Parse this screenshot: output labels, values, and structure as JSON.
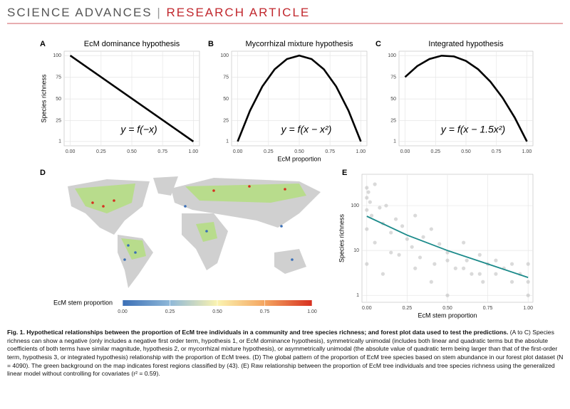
{
  "header": {
    "journal": "SCIENCE ADVANCES",
    "section": "RESEARCH ARTICLE"
  },
  "chart_data": [
    {
      "type": "line",
      "panel": "A",
      "title": "EcM dominance hypothesis",
      "ylabel": "Species richness",
      "annotation": "y = f(−x)",
      "x": [
        0,
        1
      ],
      "values": [
        100,
        1
      ],
      "color": "#000000",
      "xlim": [
        -0.05,
        1.05
      ],
      "ylim": [
        -4,
        105
      ],
      "xticks": [
        {
          "value": 0,
          "label": "0.00"
        },
        0.25,
        {
          "value": 0.5,
          "label": "0.50"
        },
        0.75,
        {
          "value": 1,
          "label": "1.00"
        }
      ],
      "yticks": [
        1,
        25,
        50,
        75,
        100
      ],
      "grid": true
    },
    {
      "type": "line",
      "panel": "B",
      "title": "Mycorrhizal mixture hypothesis",
      "xlabel": "EcM proportion",
      "annotation": "y = f(x − x²)",
      "x": [
        0,
        0.1,
        0.2,
        0.3,
        0.4,
        0.5,
        0.6,
        0.7,
        0.8,
        0.9,
        1
      ],
      "values": [
        1,
        36.6,
        64.4,
        84.2,
        96,
        100,
        96,
        84.2,
        64.4,
        36.6,
        1
      ],
      "color": "#000000",
      "xlim": [
        -0.05,
        1.05
      ],
      "ylim": [
        -4,
        105
      ],
      "xticks": [
        {
          "value": 0,
          "label": "0.00"
        },
        0.25,
        {
          "value": 0.5,
          "label": "0.50"
        },
        0.75,
        {
          "value": 1,
          "label": "1.00"
        }
      ],
      "yticks": [
        1,
        25,
        50,
        75,
        100
      ],
      "grid": true
    },
    {
      "type": "line",
      "panel": "C",
      "title": "Integrated hypothesis",
      "annotation": "y = f(x − 1.5x²)",
      "x": [
        0,
        0.1,
        0.2,
        0.3,
        0.4,
        0.5,
        0.6,
        0.7,
        0.8,
        0.9,
        1
      ],
      "values": [
        75.25,
        87.9,
        96,
        99.8,
        99,
        93.8,
        84.2,
        70,
        51.5,
        28.5,
        1
      ],
      "color": "#000000",
      "xlim": [
        -0.05,
        1.05
      ],
      "ylim": [
        -4,
        105
      ],
      "xticks": [
        {
          "value": 0,
          "label": "0.00"
        },
        0.25,
        {
          "value": 0.5,
          "label": "0.50"
        },
        0.75,
        {
          "value": 1,
          "label": "1.00"
        }
      ],
      "yticks": [
        1,
        25,
        50,
        75,
        100
      ],
      "grid": true
    },
    {
      "type": "colorbar",
      "panel": "D",
      "label": "EcM stem proportion",
      "colors": [
        "#3b6fb6",
        "#8fb8d8",
        "#fbf3b0",
        "#f4a560",
        "#d7301f"
      ],
      "xlim": [
        0,
        1
      ],
      "xticks": [
        {
          "value": 0,
          "label": "0.00"
        },
        0.25,
        {
          "value": 0.5,
          "label": "0.50"
        },
        0.75,
        {
          "value": 1,
          "label": "1.00"
        }
      ]
    },
    {
      "type": "scatter",
      "panel": "E",
      "xlabel": "EcM stem proportion",
      "ylabel": "Species richness",
      "x": [
        0,
        0,
        0,
        0,
        0,
        0.01,
        0.02,
        0.03,
        0.05,
        0.05,
        0.08,
        0.1,
        0.12,
        0.15,
        0.18,
        0.2,
        0.22,
        0.25,
        0.28,
        0.3,
        0.33,
        0.35,
        0.4,
        0.42,
        0.45,
        0.5,
        0.5,
        0.55,
        0.6,
        0.62,
        0.65,
        0.7,
        0.72,
        0.75,
        0.8,
        0.85,
        0.9,
        0.95,
        1,
        1,
        1,
        0.3,
        0.5,
        0.7,
        0.9,
        0.1,
        0.6,
        0.15,
        0.4,
        0.8
      ],
      "values": [
        250,
        150,
        80,
        30,
        5,
        200,
        120,
        60,
        300,
        15,
        90,
        40,
        100,
        25,
        50,
        8,
        35,
        18,
        12,
        60,
        7,
        20,
        30,
        5,
        14,
        1,
        9,
        4,
        15,
        6,
        3,
        8,
        2,
        5,
        3,
        4,
        2,
        3,
        1,
        5,
        2,
        4,
        6,
        3,
        5,
        3,
        4,
        9,
        2,
        6
      ],
      "color": "#b5b5b5",
      "trend": {
        "x": [
          0,
          0.25,
          0.5,
          0.75,
          1
        ],
        "values": [
          58,
          22,
          10,
          5,
          2.5
        ],
        "color": "#1b8a8a"
      },
      "log_y": true,
      "xlim": [
        -0.03,
        1.03
      ],
      "ylim": [
        0.7,
        500
      ],
      "xticks": [
        {
          "value": 0,
          "label": "0.00"
        },
        0.25,
        {
          "value": 0.5,
          "label": "0.50"
        },
        0.75,
        {
          "value": 1,
          "label": "1.00"
        }
      ],
      "yticks": [
        1,
        10,
        100
      ],
      "grid": true
    }
  ],
  "caption": {
    "title": "Fig. 1. Hypothetical relationships between the proportion of EcM tree individuals in a community and tree species richness; and forest plot data used to test the predictions.",
    "body": "(A to C) Species richness can show a negative (only includes a negative first order term, hypothesis 1, or EcM dominance hypothesis), symmetrically unimodal (includes both linear and quadratic terms but the absolute coefficients of both terms have similar magnitude, hypothesis 2, or mycorrhizal mixture hypothesis), or asymmetrically unimodal (the absolute value of quadratic term being larger than that of the first-order term, hypothesis 3, or integrated hypothesis) relationship with the proportion of EcM trees. (D) The global pattern of the proportion of EcM tree species based on stem abundance in our forest plot dataset (N = 4090). The green background on the map indicates forest regions classified by (43). (E) Raw relationship between the proportion of EcM tree individuals and tree species richness using the generalized linear model without controlling for covariates (r² = 0.59)."
  }
}
